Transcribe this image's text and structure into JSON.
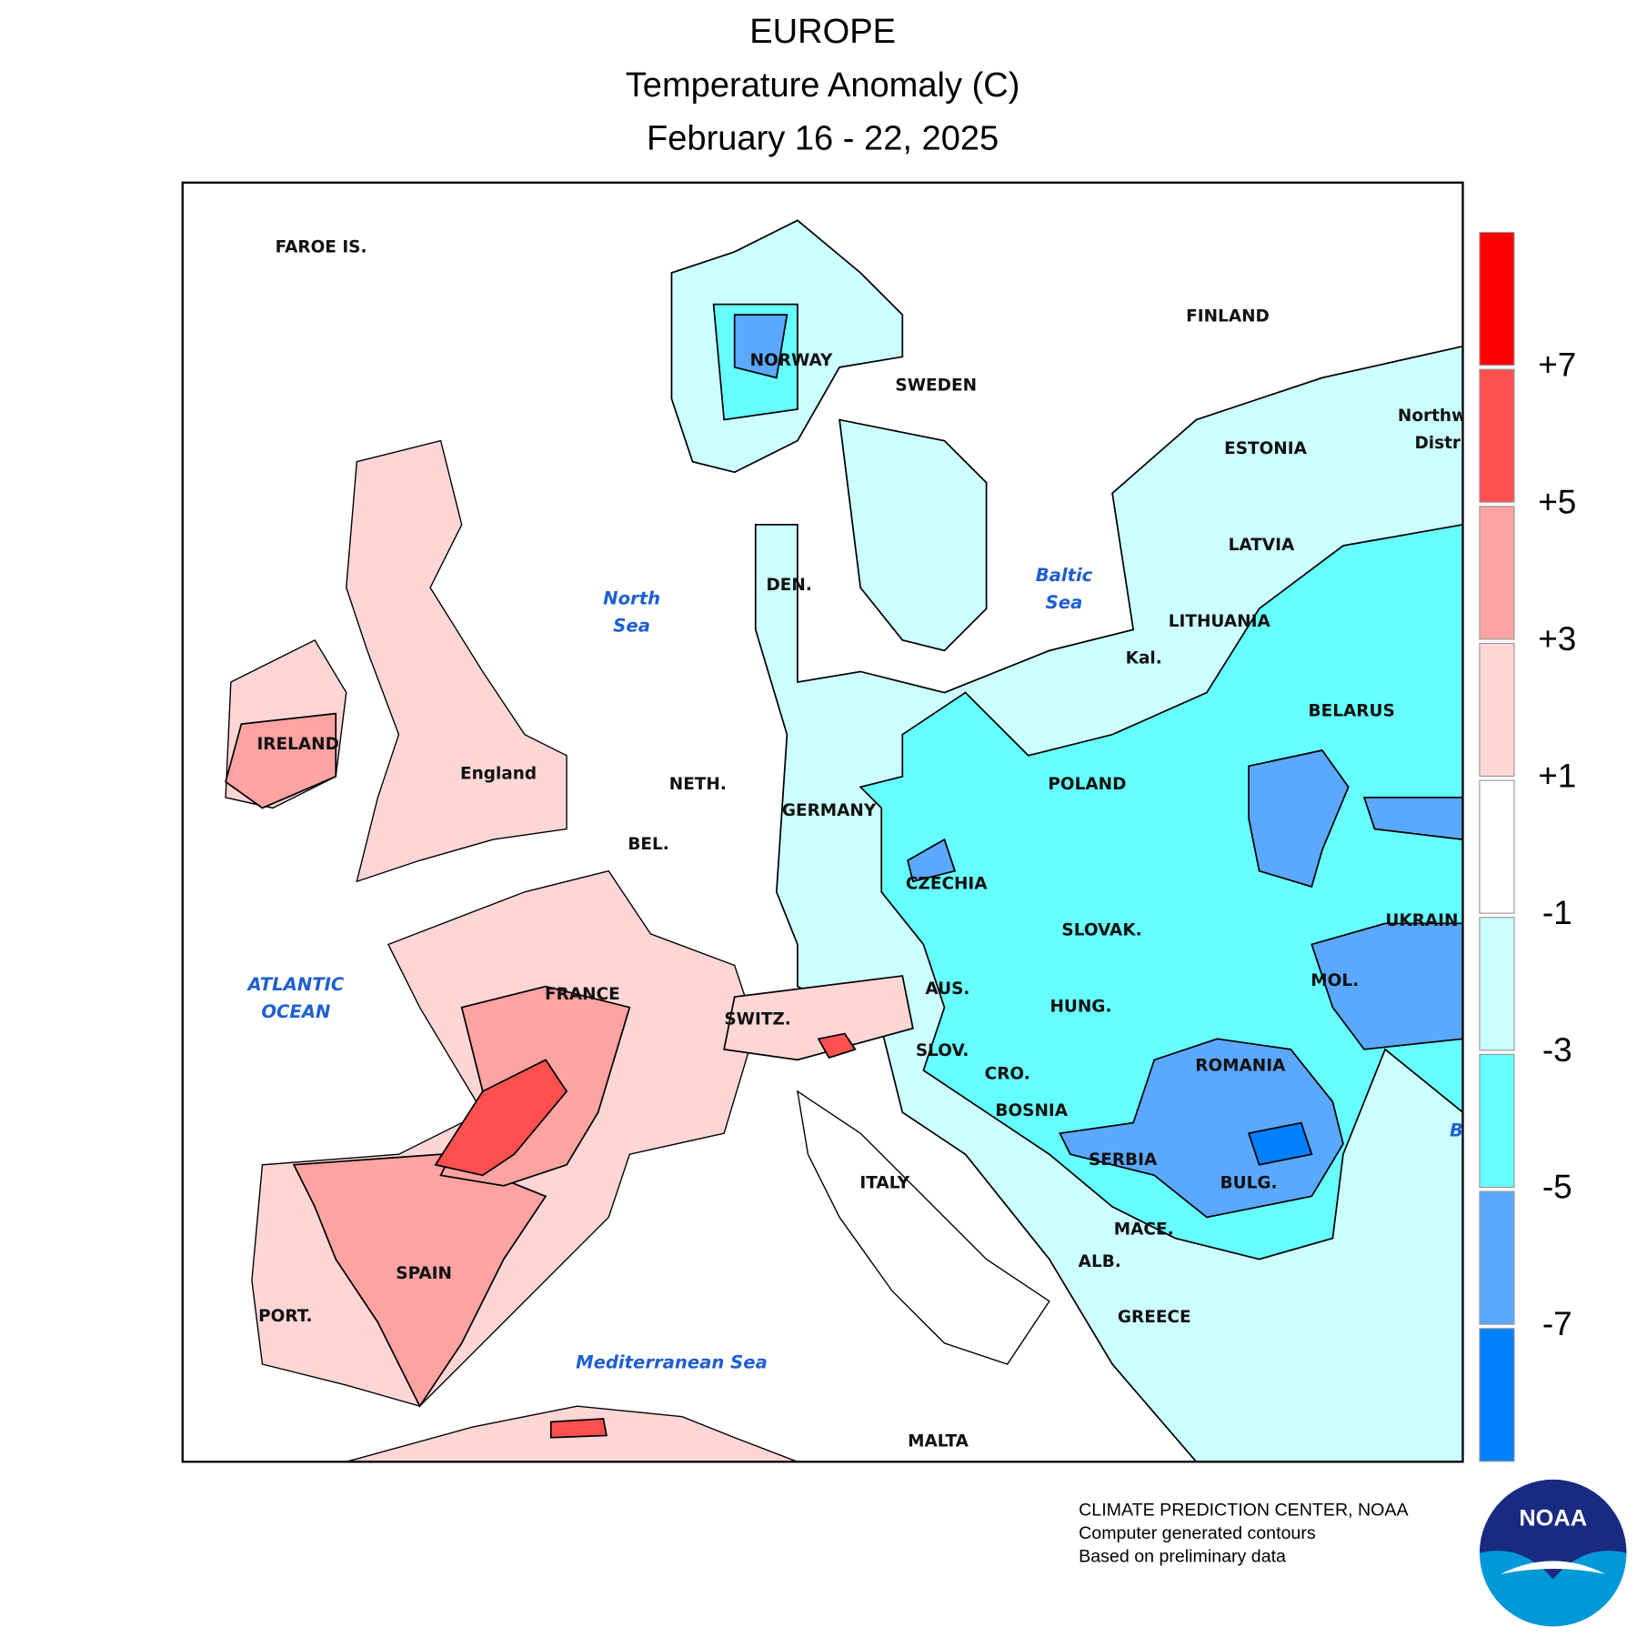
{
  "header": {
    "title": "EUROPE",
    "subtitle": "Temperature Anomaly (C)",
    "period": "February 16 - 22, 2025"
  },
  "map": {
    "region_labels": [
      "FAROE IS.",
      "NORWAY",
      "SWEDEN",
      "FINLAND",
      "ESTONIA",
      "LATVIA",
      "LITHUANIA",
      "Kal.",
      "BELARUS",
      "POLAND",
      "GERMANY",
      "NETH.",
      "BEL.",
      "DEN.",
      "England",
      "IRELAND",
      "CZECHIA",
      "SLOVAK.",
      "UKRAIN",
      "AUS.",
      "HUNG.",
      "MOL.",
      "FRANCE",
      "SWITZ.",
      "SLOV.",
      "CRO.",
      "ROMANIA",
      "BOSNIA",
      "SERBIA",
      "BULG.",
      "ITALY",
      "MACE.",
      "ALB.",
      "SPAIN",
      "PORT.",
      "GREECE",
      "MALTA",
      "Northw",
      "Distr"
    ],
    "sea_labels": [
      [
        "North",
        "Sea"
      ],
      [
        "Baltic",
        "Sea"
      ],
      [
        "ATLANTIC",
        "OCEAN"
      ],
      [
        "Mediterranean Sea"
      ],
      [
        "B"
      ]
    ]
  },
  "legend": {
    "colors": [
      "#ff0000",
      "#ff5050",
      "#ffa3a3",
      "#ffd6d6",
      "#ffffff",
      "#ccffff",
      "#66ffff",
      "#5aa8ff",
      "#0080ff"
    ],
    "ticks": [
      {
        "value": 7,
        "label": "+7"
      },
      {
        "value": 5,
        "label": "+5"
      },
      {
        "value": 3,
        "label": "+3"
      },
      {
        "value": 1,
        "label": "+1"
      },
      -1,
      -3,
      -5,
      -7
    ]
  },
  "credits": [
    "CLIMATE PREDICTION CENTER, NOAA",
    "Computer generated contours",
    "Based on preliminary data"
  ],
  "logo_text": "NOAA"
}
